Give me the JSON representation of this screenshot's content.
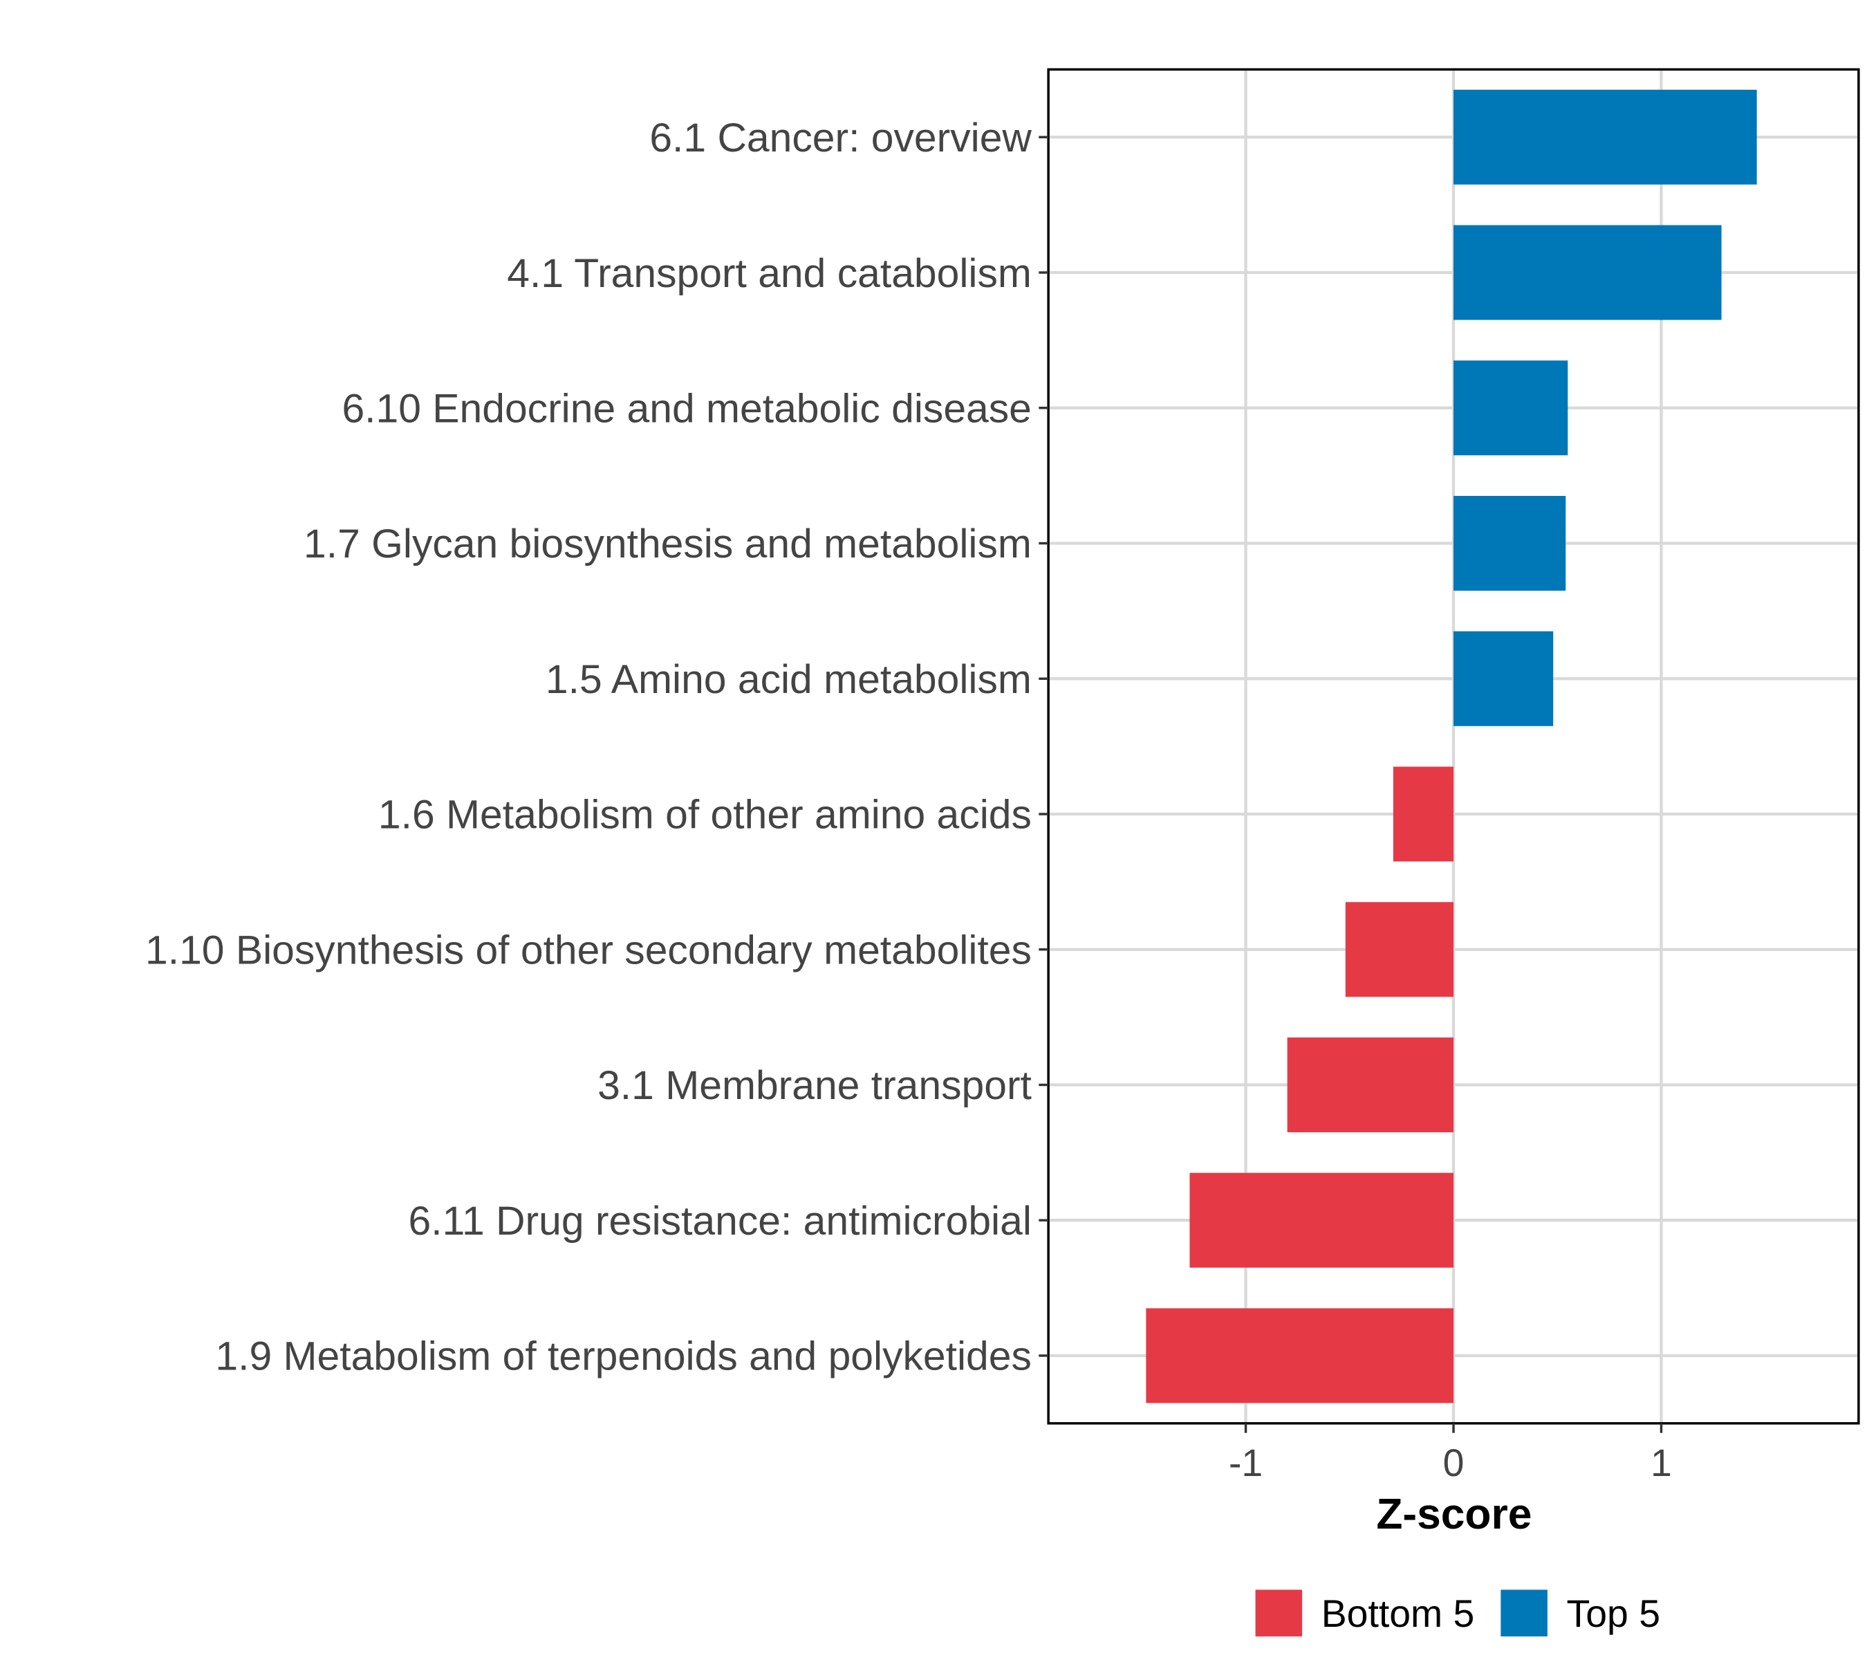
{
  "chart_data": {
    "type": "bar",
    "orientation": "horizontal",
    "categories": [
      "6.1 Cancer: overview",
      "4.1 Transport and catabolism",
      "6.10 Endocrine and metabolic disease",
      "1.7 Glycan biosynthesis and metabolism",
      "1.5 Amino acid metabolism",
      "1.6 Metabolism of other amino acids",
      "1.10 Biosynthesis of other secondary metabolites",
      "3.1 Membrane transport",
      "6.11 Drug resistance: antimicrobial",
      "1.9 Metabolism of terpenoids and polyketides"
    ],
    "values": [
      1.46,
      1.29,
      0.55,
      0.54,
      0.48,
      -0.29,
      -0.52,
      -0.8,
      -1.27,
      -1.48
    ],
    "groups": [
      "Top 5",
      "Top 5",
      "Top 5",
      "Top 5",
      "Top 5",
      "Bottom 5",
      "Bottom 5",
      "Bottom 5",
      "Bottom 5",
      "Bottom 5"
    ],
    "xlabel": "Z-score",
    "ylabel": "",
    "xlim": [
      -1.95,
      1.95
    ],
    "xticks": [
      -1,
      0,
      1
    ],
    "xtick_labels": [
      "-1",
      "0",
      "1"
    ],
    "grid": true,
    "legend": {
      "position": "bottom",
      "entries": [
        {
          "label": "Bottom 5",
          "color": "#E63946"
        },
        {
          "label": "Top 5",
          "color": "#0077B6"
        }
      ]
    },
    "colors": {
      "Top 5": "#0077B6",
      "Bottom 5": "#E63946"
    }
  }
}
